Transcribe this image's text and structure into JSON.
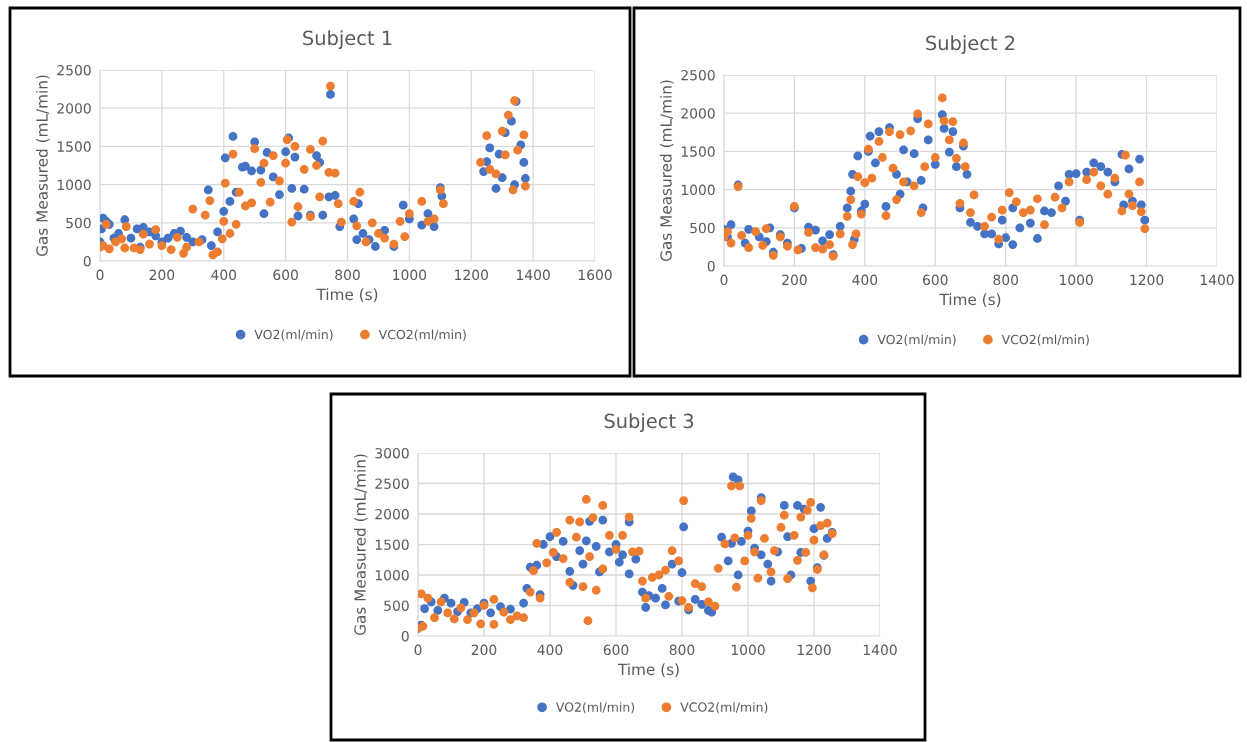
{
  "chart_data": [
    {
      "type": "scatter",
      "title": "Subject 1",
      "xlabel": "Time (s)",
      "ylabel": "Gas Measured (mL/min)",
      "xlim": [
        0,
        1600
      ],
      "xticks": [
        0,
        200,
        400,
        600,
        800,
        1000,
        1200,
        1400,
        1600
      ],
      "ylim": [
        0,
        2500
      ],
      "yticks": [
        0,
        500,
        1000,
        1500,
        2000,
        2500
      ],
      "grid": true,
      "legend": "bottom",
      "marker": "circle",
      "series": [
        {
          "name": "VO2(ml/min)",
          "color": "#4472c4",
          "x": [
            0,
            5,
            10,
            20,
            30,
            45,
            60,
            80,
            100,
            120,
            130,
            140,
            160,
            180,
            200,
            220,
            240,
            260,
            280,
            300,
            330,
            350,
            360,
            380,
            400,
            405,
            420,
            430,
            440,
            460,
            470,
            490,
            500,
            520,
            530,
            540,
            560,
            580,
            600,
            610,
            620,
            630,
            640,
            660,
            680,
            700,
            710,
            720,
            740,
            745,
            760,
            775,
            820,
            830,
            835,
            850,
            870,
            890,
            920,
            950,
            980,
            1000,
            1040,
            1060,
            1080,
            1100,
            1105,
            1240,
            1250,
            1260,
            1280,
            1290,
            1300,
            1310,
            1330,
            1340,
            1345,
            1360,
            1370,
            1375
          ],
          "values": [
            250,
            420,
            560,
            520,
            480,
            300,
            360,
            540,
            300,
            420,
            180,
            440,
            380,
            330,
            250,
            300,
            360,
            390,
            310,
            250,
            280,
            930,
            200,
            380,
            650,
            1350,
            780,
            1630,
            900,
            1230,
            1240,
            1180,
            1560,
            1190,
            620,
            1420,
            1100,
            870,
            1430,
            1610,
            950,
            1360,
            590,
            940,
            600,
            1380,
            1290,
            600,
            840,
            2180,
            860,
            450,
            550,
            280,
            750,
            360,
            280,
            190,
            400,
            190,
            730,
            550,
            470,
            620,
            450,
            960,
            850,
            1170,
            1300,
            1480,
            950,
            1400,
            1090,
            1680,
            1830,
            1000,
            2090,
            1520,
            1290,
            1080
          ]
        },
        {
          "name": "VCO2(ml/min)",
          "color": "#ed7d31",
          "x": [
            0,
            10,
            20,
            30,
            50,
            70,
            80,
            85,
            110,
            130,
            140,
            160,
            180,
            200,
            230,
            250,
            270,
            280,
            300,
            320,
            340,
            355,
            365,
            380,
            395,
            400,
            405,
            420,
            430,
            440,
            450,
            470,
            490,
            500,
            520,
            530,
            550,
            560,
            580,
            600,
            605,
            620,
            630,
            640,
            660,
            680,
            680,
            700,
            710,
            720,
            740,
            745,
            760,
            770,
            780,
            820,
            830,
            840,
            860,
            880,
            900,
            920,
            950,
            970,
            985,
            1000,
            1040,
            1060,
            1080,
            1100,
            1110,
            1230,
            1250,
            1260,
            1280,
            1300,
            1310,
            1320,
            1335,
            1340,
            1350,
            1370,
            1375
          ],
          "values": [
            180,
            200,
            480,
            160,
            250,
            290,
            170,
            450,
            170,
            150,
            350,
            220,
            410,
            200,
            150,
            310,
            100,
            180,
            680,
            250,
            600,
            790,
            80,
            120,
            290,
            520,
            1020,
            360,
            1400,
            480,
            900,
            720,
            760,
            1470,
            1030,
            1280,
            770,
            1380,
            1050,
            1280,
            1590,
            510,
            1500,
            710,
            1200,
            580,
            1460,
            1250,
            840,
            1570,
            1160,
            2290,
            1150,
            750,
            510,
            780,
            460,
            900,
            250,
            500,
            360,
            300,
            220,
            520,
            320,
            620,
            780,
            520,
            550,
            930,
            750,
            1290,
            1640,
            1200,
            1140,
            1700,
            1390,
            1910,
            930,
            2100,
            1450,
            1650,
            980
          ]
        }
      ]
    },
    {
      "type": "scatter",
      "title": "Subject 2",
      "xlabel": "Time (s)",
      "ylabel": "Gas Measured (mL/min)",
      "xlim": [
        0,
        1400
      ],
      "xticks": [
        0,
        200,
        400,
        600,
        800,
        1000,
        1200,
        1400
      ],
      "ylim": [
        0,
        2500
      ],
      "yticks": [
        0,
        500,
        1000,
        1500,
        2000,
        2500
      ],
      "grid": true,
      "legend": "bottom",
      "marker": "circle",
      "series": [
        {
          "name": "VO2(ml/min)",
          "color": "#4472c4",
          "x": [
            0,
            10,
            20,
            40,
            60,
            70,
            100,
            120,
            130,
            140,
            160,
            180,
            200,
            220,
            240,
            260,
            280,
            300,
            310,
            330,
            350,
            360,
            365,
            370,
            380,
            390,
            400,
            410,
            415,
            430,
            440,
            460,
            470,
            490,
            500,
            510,
            520,
            540,
            550,
            560,
            565,
            580,
            600,
            620,
            625,
            640,
            650,
            660,
            670,
            680,
            690,
            700,
            720,
            740,
            760,
            780,
            790,
            800,
            820,
            820,
            840,
            870,
            890,
            910,
            930,
            950,
            970,
            980,
            1000,
            1010,
            1030,
            1050,
            1070,
            1090,
            1110,
            1130,
            1135,
            1150,
            1160,
            1180,
            1185,
            1195
          ],
          "values": [
            480,
            380,
            540,
            1060,
            300,
            480,
            380,
            320,
            500,
            180,
            410,
            300,
            760,
            230,
            510,
            470,
            330,
            410,
            150,
            520,
            760,
            980,
            1200,
            350,
            1440,
            720,
            810,
            1500,
            1700,
            1350,
            1760,
            780,
            1810,
            1200,
            940,
            1520,
            1100,
            1470,
            1930,
            1120,
            760,
            1650,
            1330,
            1980,
            1800,
            1490,
            1760,
            1300,
            760,
            1570,
            1200,
            570,
            520,
            420,
            420,
            290,
            600,
            370,
            280,
            760,
            500,
            560,
            360,
            720,
            700,
            1050,
            850,
            1200,
            1210,
            600,
            1230,
            1350,
            1300,
            1230,
            1100,
            1460,
            800,
            1270,
            850,
            1400,
            800,
            600
          ]
        },
        {
          "name": "VCO2(ml/min)",
          "color": "#ed7d31",
          "x": [
            0,
            10,
            20,
            40,
            50,
            70,
            90,
            110,
            120,
            140,
            160,
            180,
            200,
            210,
            240,
            260,
            280,
            300,
            310,
            330,
            350,
            360,
            365,
            375,
            380,
            390,
            400,
            410,
            420,
            440,
            450,
            460,
            470,
            480,
            490,
            500,
            510,
            530,
            540,
            550,
            560,
            570,
            580,
            600,
            620,
            625,
            640,
            650,
            660,
            670,
            680,
            685,
            700,
            710,
            740,
            760,
            780,
            790,
            810,
            830,
            850,
            870,
            890,
            910,
            940,
            960,
            980,
            1010,
            1030,
            1050,
            1070,
            1090,
            1110,
            1130,
            1140,
            1150,
            1160,
            1180,
            1185,
            1195
          ],
          "values": [
            380,
            450,
            300,
            1040,
            400,
            240,
            450,
            270,
            490,
            140,
            380,
            260,
            780,
            210,
            440,
            240,
            220,
            280,
            130,
            420,
            650,
            870,
            280,
            420,
            1170,
            680,
            1090,
            1530,
            1150,
            1630,
            1420,
            660,
            1760,
            1280,
            870,
            1720,
            1100,
            1770,
            1050,
            1990,
            700,
            1300,
            1860,
            1420,
            2200,
            1900,
            1650,
            1890,
            1410,
            820,
            1610,
            1300,
            700,
            930,
            520,
            640,
            350,
            730,
            960,
            840,
            700,
            730,
            880,
            540,
            900,
            760,
            1100,
            570,
            1130,
            1230,
            1050,
            940,
            1150,
            720,
            1450,
            940,
            790,
            1100,
            710,
            490
          ]
        }
      ]
    },
    {
      "type": "scatter",
      "title": "Subject 3",
      "xlabel": "Time (s)",
      "ylabel": "Gas Measured (mL/min)",
      "xlim": [
        0,
        1400
      ],
      "xticks": [
        0,
        200,
        400,
        600,
        800,
        1000,
        1200,
        1400
      ],
      "ylim": [
        0,
        3000
      ],
      "yticks": [
        0,
        500,
        1000,
        1500,
        2000,
        2500,
        3000
      ],
      "grid": true,
      "legend": "bottom",
      "marker": "circle",
      "series": [
        {
          "name": "VO2(ml/min)",
          "color": "#4472c4",
          "x": [
            10,
            20,
            40,
            60,
            80,
            100,
            120,
            140,
            160,
            180,
            200,
            220,
            250,
            280,
            300,
            320,
            330,
            340,
            360,
            370,
            380,
            400,
            420,
            440,
            460,
            470,
            490,
            500,
            510,
            520,
            540,
            550,
            560,
            580,
            600,
            610,
            620,
            640,
            640,
            660,
            680,
            690,
            700,
            720,
            740,
            750,
            770,
            790,
            800,
            805,
            820,
            840,
            860,
            880,
            890,
            920,
            940,
            950,
            955,
            970,
            970,
            980,
            1000,
            1010,
            1020,
            1040,
            1040,
            1060,
            1070,
            1090,
            1110,
            1120,
            1130,
            1150,
            1160,
            1170,
            1190,
            1200,
            1210,
            1220,
            1230,
            1240,
            1255
          ],
          "values": [
            180,
            450,
            560,
            420,
            620,
            540,
            400,
            550,
            380,
            450,
            540,
            380,
            480,
            440,
            null,
            540,
            780,
            1130,
            1160,
            680,
            1500,
            1630,
            1300,
            1550,
            1060,
            830,
            1400,
            1180,
            1560,
            1880,
            1470,
            1050,
            1900,
            1380,
            1500,
            1210,
            1330,
            1870,
            1020,
            1260,
            720,
            470,
            660,
            620,
            780,
            510,
            1180,
            570,
            1040,
            1790,
            430,
            600,
            520,
            420,
            390,
            1620,
            1230,
            1520,
            2610,
            2560,
            1000,
            1550,
            1720,
            2050,
            1440,
            2270,
            1330,
            1180,
            900,
            1380,
            2140,
            1630,
            1000,
            2140,
            1370,
            2080,
            900,
            1760,
            1120,
            2110,
            1320,
            1600,
            1700
          ]
        },
        {
          "name": "VCO2(ml/min)",
          "color": "#ed7d31",
          "x": [
            0,
            10,
            15,
            30,
            50,
            70,
            90,
            110,
            130,
            150,
            170,
            190,
            200,
            230,
            230,
            260,
            280,
            300,
            320,
            340,
            350,
            360,
            370,
            390,
            410,
            420,
            440,
            460,
            460,
            480,
            490,
            500,
            510,
            515,
            520,
            530,
            540,
            560,
            560,
            580,
            600,
            620,
            640,
            650,
            670,
            680,
            690,
            710,
            730,
            750,
            760,
            770,
            790,
            800,
            805,
            820,
            840,
            860,
            880,
            900,
            910,
            930,
            950,
            960,
            965,
            975,
            990,
            1000,
            1010,
            1020,
            1030,
            1040,
            1050,
            1070,
            1080,
            1100,
            1110,
            1120,
            1140,
            1150,
            1160,
            1175,
            1180,
            1190,
            1195,
            1200,
            1210,
            1220,
            1230,
            1240,
            1255
          ],
          "values": [
            120,
            690,
            160,
            620,
            300,
            560,
            380,
            280,
            460,
            270,
            380,
            200,
            500,
            600,
            190,
            390,
            270,
            330,
            300,
            720,
            1070,
            1520,
            620,
            1200,
            1370,
            1700,
            1270,
            1900,
            880,
            1620,
            1870,
            810,
            2240,
            250,
            1300,
            1940,
            750,
            2140,
            1100,
            1650,
            1420,
            1650,
            1950,
            1380,
            1390,
            900,
            620,
            960,
            1000,
            1080,
            650,
            1400,
            1230,
            580,
            2220,
            470,
            860,
            810,
            560,
            490,
            1110,
            1510,
            2460,
            1610,
            800,
            2460,
            1230,
            1650,
            1930,
            1380,
            950,
            2220,
            1600,
            1050,
            1400,
            1780,
            1980,
            940,
            1650,
            1240,
            1950,
            1370,
            2060,
            2190,
            790,
            1570,
            1090,
            1810,
            1330,
            1850,
            1680
          ]
        }
      ]
    }
  ]
}
